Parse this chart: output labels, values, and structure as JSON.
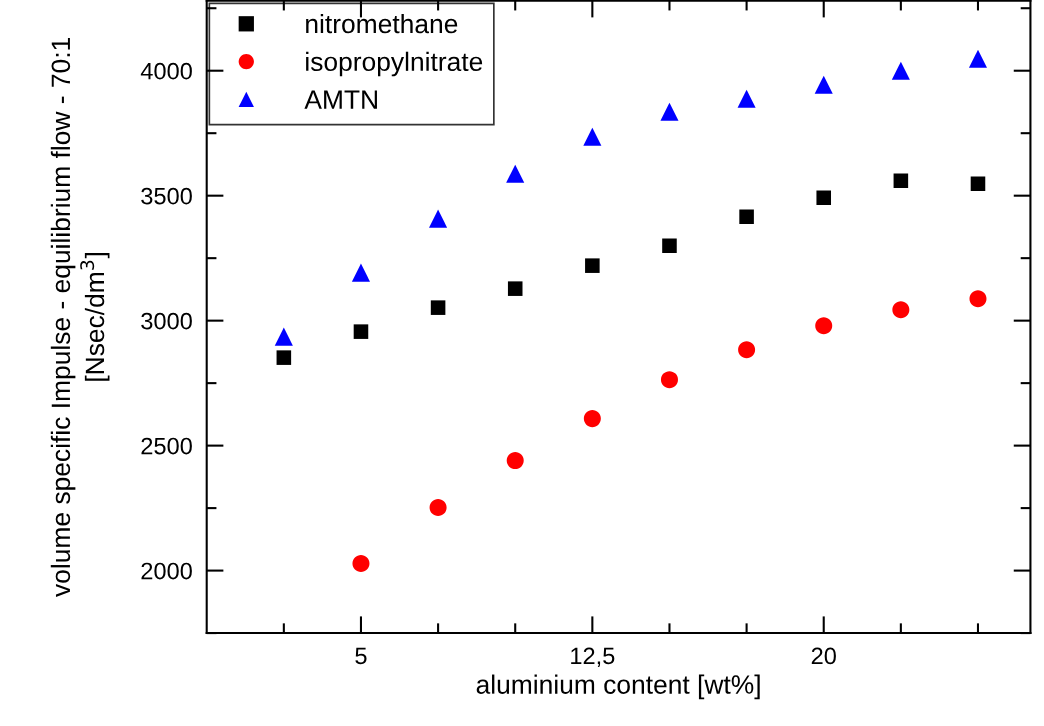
{
  "chart_data": {
    "type": "scatter",
    "xlabel": "aluminium content [wt%]",
    "ylabel": "volume specific Impulse - equilibrium flow - 70:1\n[Nsec/dm$^{3}$]",
    "x": [
      2.5,
      5,
      7.5,
      10,
      12.5,
      15,
      17.5,
      20,
      22.5,
      25
    ],
    "series": [
      {
        "name": "nitromethane",
        "color": "#000000",
        "marker": "square",
        "values": [
          2852,
          2956,
          3052,
          3128,
          3220,
          3300,
          3416,
          3492,
          3560,
          3548
        ]
      },
      {
        "name": "isopropylnitrate",
        "color": "#ff0000",
        "marker": "circle",
        "values": [
          null,
          2028,
          2252,
          2440,
          2608,
          2764,
          2884,
          2980,
          3044,
          3088
        ]
      },
      {
        "name": "AMTN",
        "color": "#0000ff",
        "marker": "triangle",
        "values": [
          2936,
          3192,
          3408,
          3588,
          3736,
          3836,
          3888,
          3944,
          4000,
          4048
        ]
      }
    ],
    "xlim": [
      0,
      26.7
    ],
    "ylim": [
      1750,
      4280
    ],
    "xticks": [
      {
        "value": 2.5,
        "label": null
      },
      5,
      {
        "value": 7.5,
        "label": null
      },
      {
        "value": 10,
        "label": null
      },
      {
        "value": 12.5,
        "label": "12,5"
      },
      {
        "value": 15,
        "label": null
      },
      {
        "value": 17.5,
        "label": null
      },
      20,
      {
        "value": 22.5,
        "label": null
      },
      {
        "value": 25,
        "label": null
      }
    ],
    "yticks": [
      {
        "value": 1750,
        "label": null
      },
      2000,
      {
        "value": 2250,
        "label": null
      },
      2500,
      {
        "value": 2750,
        "label": null
      },
      3000,
      {
        "value": 3250,
        "label": null
      },
      3500,
      {
        "value": 3750,
        "label": null
      },
      4000,
      {
        "value": 4250,
        "label": null
      }
    ],
    "grid": false,
    "legend": "top left"
  }
}
